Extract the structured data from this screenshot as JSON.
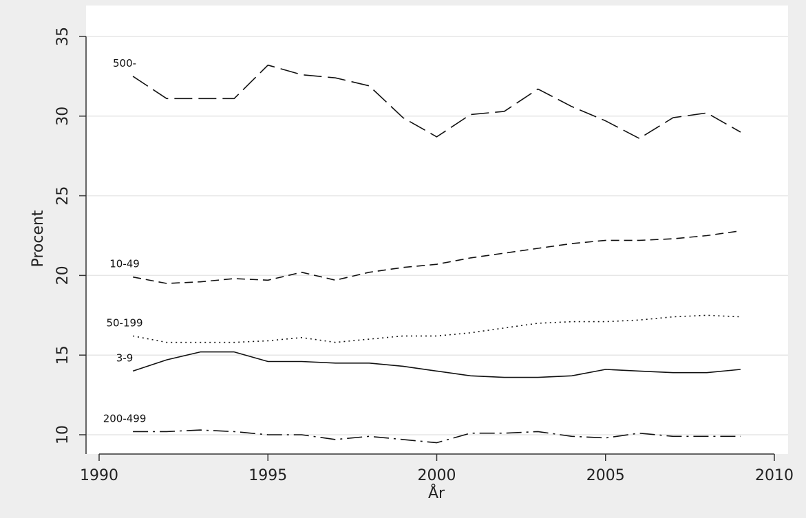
{
  "chart_data": {
    "type": "line",
    "xlabel": "År",
    "ylabel": "Procent",
    "xlim": [
      1990,
      2010
    ],
    "ylim": [
      9,
      35
    ],
    "x_ticks": [
      1990,
      1995,
      2000,
      2005,
      2010
    ],
    "y_ticks": [
      10,
      15,
      20,
      25,
      30,
      35
    ],
    "grid": "horizontal",
    "x": [
      1991,
      1992,
      1993,
      1994,
      1995,
      1996,
      1997,
      1998,
      1999,
      2000,
      2001,
      2002,
      2003,
      2004,
      2005,
      2006,
      2007,
      2008,
      2009
    ],
    "series": [
      {
        "name": "500-",
        "dash": "long-dash",
        "values": [
          32.5,
          31.1,
          31.1,
          31.1,
          33.2,
          32.6,
          32.4,
          31.9,
          29.9,
          28.7,
          30.1,
          30.3,
          31.7,
          30.6,
          29.7,
          28.6,
          29.9,
          30.2,
          29.0
        ]
      },
      {
        "name": "10-49",
        "dash": "medium-dash",
        "values": [
          19.9,
          19.5,
          19.6,
          19.8,
          19.7,
          20.2,
          19.7,
          20.2,
          20.5,
          20.7,
          21.1,
          21.4,
          21.7,
          22.0,
          22.2,
          22.2,
          22.3,
          22.5,
          22.8
        ]
      },
      {
        "name": "50-199",
        "dash": "dotted",
        "values": [
          16.2,
          15.8,
          15.8,
          15.8,
          15.9,
          16.1,
          15.8,
          16.0,
          16.2,
          16.2,
          16.4,
          16.7,
          17.0,
          17.1,
          17.1,
          17.2,
          17.4,
          17.5,
          17.4
        ]
      },
      {
        "name": "3-9",
        "dash": "solid",
        "values": [
          14.0,
          14.7,
          15.2,
          15.2,
          14.6,
          14.6,
          14.5,
          14.5,
          14.3,
          14.0,
          13.7,
          13.6,
          13.6,
          13.7,
          14.1,
          14.0,
          13.9,
          13.9,
          14.1
        ]
      },
      {
        "name": "200-499",
        "dash": "dash-dot",
        "values": [
          10.2,
          10.2,
          10.3,
          10.2,
          10.0,
          10.0,
          9.7,
          9.9,
          9.7,
          9.5,
          10.1,
          10.1,
          10.2,
          9.9,
          9.8,
          10.1,
          9.9,
          9.9,
          9.9
        ]
      }
    ]
  }
}
